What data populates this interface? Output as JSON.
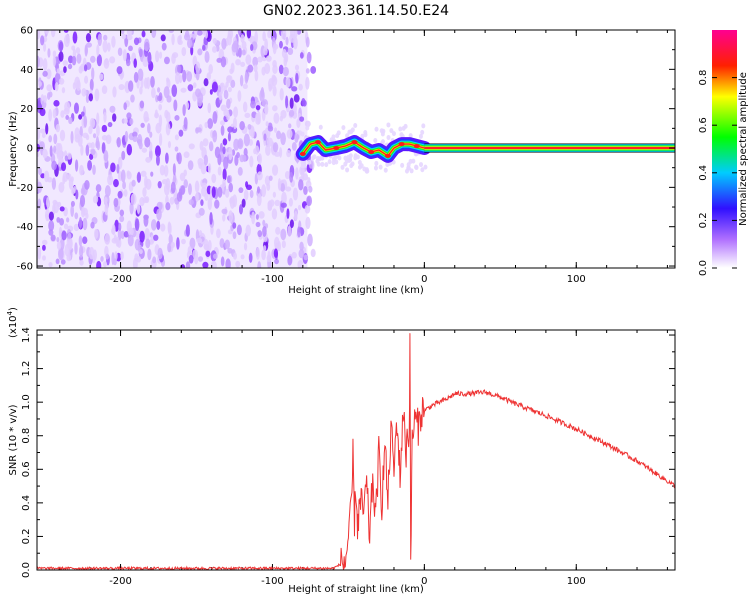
{
  "title": "GN02.2023.361.14.50.E24",
  "colors": {
    "snr_line": "#ee3333",
    "spectrogram_low": "#e8d8ff",
    "spectrogram_mid": "#7a1cff",
    "axes": "#000000"
  },
  "colormap_stops": [
    "#ffffff",
    "#9a00ff",
    "#0000ff",
    "#00ffff",
    "#00ff00",
    "#ffff00",
    "#ff0000",
    "#ff0080"
  ],
  "chart_data": [
    {
      "type": "heatmap",
      "title": "GN02.2023.361.14.50.E24",
      "xlabel": "Height of straight line (km)",
      "ylabel": "Frequency (Hz)",
      "xlim": [
        -255,
        165
      ],
      "ylim": [
        -61,
        60
      ],
      "xticks": [
        -200,
        -100,
        0,
        100
      ],
      "yticks": [
        -60,
        -40,
        -20,
        0,
        20,
        40,
        60
      ],
      "colorbar": {
        "label": "Normalized spectral amplitude",
        "range": [
          0,
          1
        ],
        "ticks": [
          "0.0",
          "0.2",
          "0.4",
          "0.6",
          "0.8"
        ]
      },
      "regions": [
        {
          "name": "noise",
          "x": [
            -255,
            -77
          ],
          "freq": [
            -61,
            60
          ],
          "amplitude": 0.25
        },
        {
          "name": "transition",
          "x": [
            -80,
            0
          ],
          "freq_center": 0,
          "amplitude": 0.9
        },
        {
          "name": "tone",
          "x": [
            0,
            165
          ],
          "freq": 0,
          "amplitude": 0.9
        }
      ],
      "transition_track": [
        {
          "x": -80,
          "f": -3
        },
        {
          "x": -75,
          "f": 2
        },
        {
          "x": -70,
          "f": 3
        },
        {
          "x": -65,
          "f": -1
        },
        {
          "x": -58,
          "f": 0
        },
        {
          "x": -52,
          "f": 1
        },
        {
          "x": -46,
          "f": 3
        },
        {
          "x": -40,
          "f": 0
        },
        {
          "x": -35,
          "f": -2
        },
        {
          "x": -30,
          "f": -1
        },
        {
          "x": -24,
          "f": -4
        },
        {
          "x": -20,
          "f": 0
        },
        {
          "x": -15,
          "f": 2
        },
        {
          "x": -10,
          "f": 2
        },
        {
          "x": -5,
          "f": 1
        },
        {
          "x": 0,
          "f": 0
        }
      ]
    },
    {
      "type": "line",
      "xlabel": "Height of straight line (km)",
      "ylabel": "SNR (10 * v/v)",
      "y_multiplier": "(x10",
      "y_multiplier_exp": "4",
      "y_multiplier_close": ")",
      "xlim": [
        -255,
        165
      ],
      "ylim": [
        0,
        1.43
      ],
      "xticks": [
        -200,
        -100,
        0,
        100
      ],
      "yticks": [
        "0.0",
        "0.2",
        "0.4",
        "0.6",
        "0.8",
        "1.0",
        "1.2",
        "1.4"
      ],
      "series": [
        {
          "x": [
            -255,
            -200,
            -150,
            -100,
            -60,
            -52,
            -50,
            -48,
            -47,
            -46,
            -45,
            -44,
            -43,
            -42,
            -40,
            -38,
            -36,
            -34,
            -32,
            -30,
            -28,
            -26,
            -24,
            -22,
            -20,
            -18,
            -16,
            -14,
            -12,
            -11,
            -10,
            -9.5,
            -9,
            -8,
            -6,
            -4,
            -2,
            0,
            5,
            10,
            15,
            20,
            30,
            40,
            50,
            60,
            80,
            100,
            120,
            140,
            165
          ],
          "y": [
            0.01,
            0.01,
            0.01,
            0.01,
            0.01,
            0.05,
            0.2,
            0.35,
            0.68,
            0.3,
            0.5,
            0.25,
            0.35,
            0.4,
            0.35,
            0.5,
            0.2,
            0.55,
            0.3,
            0.7,
            0.4,
            0.75,
            0.4,
            0.85,
            0.6,
            0.9,
            0.55,
            0.95,
            0.7,
            0.85,
            0.75,
            1.42,
            0.0,
            0.8,
            0.9,
            0.85,
            0.95,
            0.95,
            0.98,
            1.0,
            1.02,
            1.05,
            1.05,
            1.06,
            1.03,
            0.99,
            0.92,
            0.84,
            0.75,
            0.65,
            0.5
          ]
        }
      ]
    }
  ]
}
